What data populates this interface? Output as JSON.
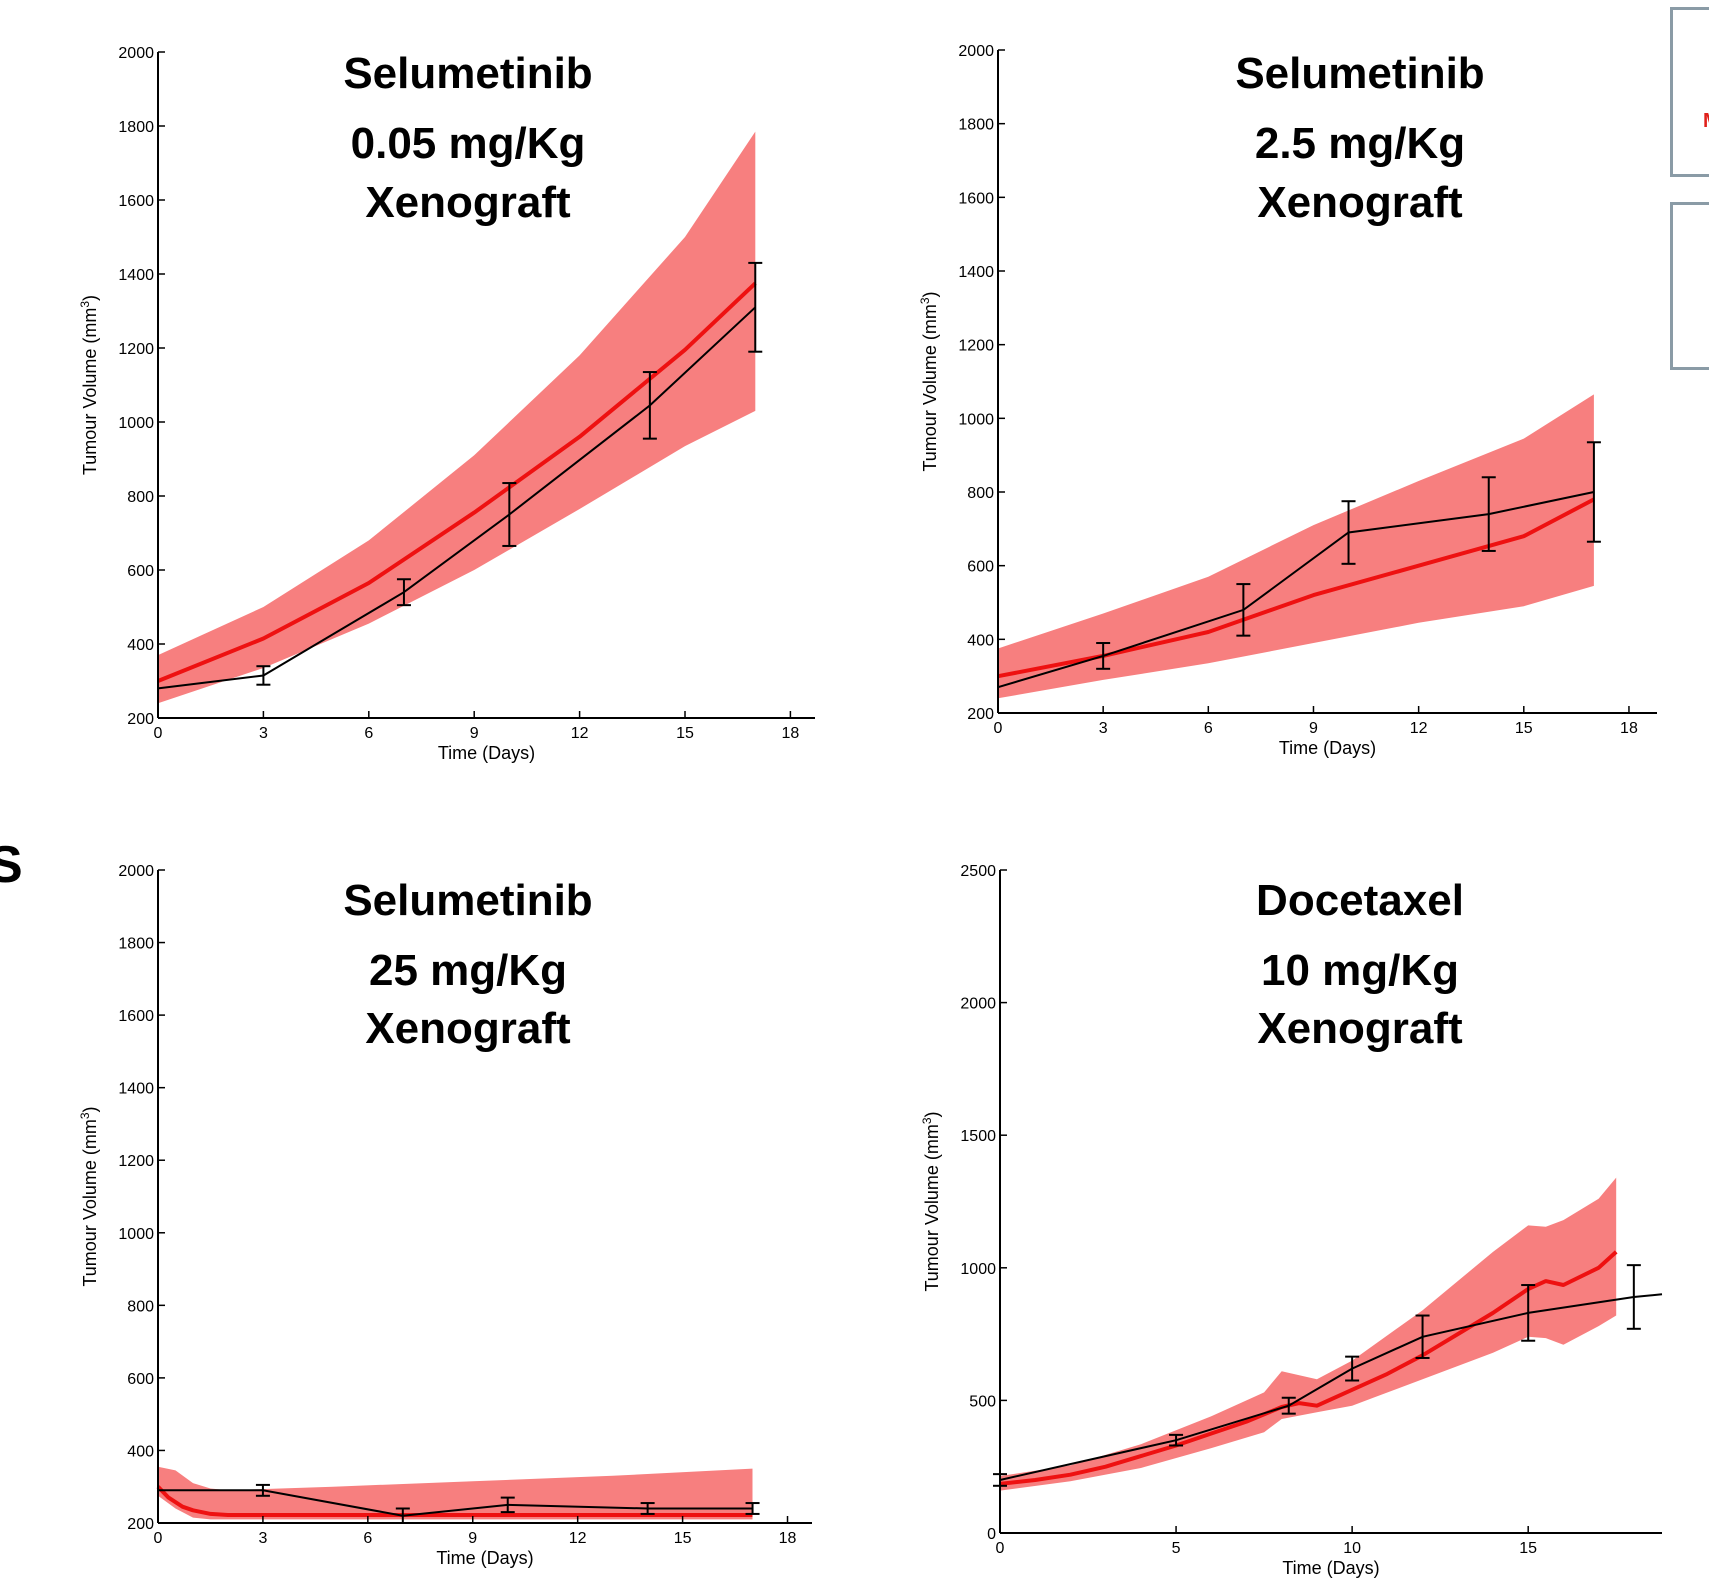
{
  "side_label": "S",
  "right_frames": [
    {
      "text": "M",
      "color": "#e0201b"
    },
    {
      "text": "",
      "color": "#000000"
    }
  ],
  "colors": {
    "model": "#ee1111",
    "band": "#f77f7f",
    "observed": "#000000"
  },
  "chart_data": [
    {
      "type": "line",
      "title_lines": [
        "Selumetinib",
        "0.05 mg/Kg",
        "Xenograft"
      ],
      "xlabel": "Time (Days)",
      "ylabel": "Tumour Volume (mm",
      "ylabel_sup": "3",
      "ylabel_close": ")",
      "xlim": [
        0,
        18.7
      ],
      "ylim": [
        200,
        2000
      ],
      "xticks": [
        0,
        3,
        6,
        9,
        12,
        15,
        18
      ],
      "yticks": [
        200,
        400,
        600,
        800,
        1000,
        1200,
        1400,
        1600,
        1800,
        2000
      ],
      "model": {
        "x": [
          0,
          3,
          6,
          9,
          12,
          15,
          17
        ],
        "y": [
          300,
          415,
          565,
          755,
          960,
          1195,
          1375
        ]
      },
      "band": {
        "x": [
          0,
          3,
          6,
          9,
          12,
          15,
          17
        ],
        "upper": [
          370,
          500,
          680,
          910,
          1180,
          1500,
          1785
        ],
        "lower": [
          240,
          335,
          455,
          600,
          765,
          935,
          1030
        ]
      },
      "observed": {
        "x": [
          0,
          3,
          7,
          10,
          14,
          17
        ],
        "y": [
          280,
          315,
          540,
          750,
          1045,
          1310
        ],
        "err": [
          0,
          25,
          35,
          85,
          90,
          120
        ]
      }
    },
    {
      "type": "line",
      "title_lines": [
        "Selumetinib",
        "2.5 mg/Kg",
        "Xenograft"
      ],
      "xlabel": "Time (Days)",
      "ylabel": "Tumour Volume (mm",
      "ylabel_sup": "3",
      "ylabel_close": ")",
      "xlim": [
        0,
        18.8
      ],
      "ylim": [
        200,
        2000
      ],
      "xticks": [
        0,
        3,
        6,
        9,
        12,
        15,
        18
      ],
      "yticks": [
        200,
        400,
        600,
        800,
        1000,
        1200,
        1400,
        1600,
        1800,
        2000
      ],
      "model": {
        "x": [
          0,
          3,
          6,
          9,
          12,
          15,
          17
        ],
        "y": [
          300,
          355,
          420,
          520,
          600,
          680,
          780
        ]
      },
      "band": {
        "x": [
          0,
          3,
          6,
          9,
          12,
          15,
          17
        ],
        "upper": [
          375,
          470,
          570,
          710,
          830,
          945,
          1065
        ],
        "lower": [
          240,
          290,
          335,
          390,
          445,
          490,
          545
        ]
      },
      "observed": {
        "x": [
          0,
          3,
          7,
          10,
          14,
          17
        ],
        "y": [
          270,
          355,
          480,
          690,
          740,
          800
        ],
        "err": [
          0,
          35,
          70,
          85,
          100,
          135
        ]
      }
    },
    {
      "type": "line",
      "title_lines": [
        "Selumetinib",
        "25 mg/Kg",
        "Xenograft"
      ],
      "xlabel": "Time (Days)",
      "ylabel": "Tumour Volume (mm",
      "ylabel_sup": "3",
      "ylabel_close": ")",
      "xlim": [
        0,
        18.7
      ],
      "ylim": [
        200,
        2000
      ],
      "xticks": [
        0,
        3,
        6,
        9,
        12,
        15,
        18
      ],
      "yticks": [
        200,
        400,
        600,
        800,
        1000,
        1200,
        1400,
        1600,
        1800,
        2000
      ],
      "model": {
        "x": [
          0,
          0.3,
          0.7,
          1.0,
          1.5,
          2.0,
          3,
          6,
          9,
          12,
          15,
          17
        ],
        "y": [
          300,
          270,
          245,
          235,
          225,
          222,
          222,
          222,
          222,
          222,
          222,
          222
        ]
      },
      "band": {
        "x": [
          0,
          0.5,
          1.0,
          1.5,
          2,
          5,
          9,
          13,
          17
        ],
        "upper": [
          355,
          345,
          310,
          295,
          290,
          300,
          315,
          330,
          350
        ],
        "lower": [
          275,
          240,
          215,
          210,
          210,
          210,
          210,
          210,
          210
        ]
      },
      "observed": {
        "x": [
          0,
          3,
          7,
          10,
          14,
          17
        ],
        "y": [
          290,
          290,
          220,
          250,
          240,
          240
        ],
        "err": [
          0,
          15,
          20,
          20,
          15,
          15
        ]
      }
    },
    {
      "type": "line",
      "title_lines": [
        "Docetaxel",
        "10 mg/Kg",
        "Xenograft"
      ],
      "xlabel": "Time (Days)",
      "ylabel": "Tumour Volume (mm",
      "ylabel_sup": "3",
      "ylabel_close": ")",
      "xlim": [
        0,
        18.8
      ],
      "ylim": [
        0,
        2500
      ],
      "xticks": [
        0,
        5,
        10,
        15
      ],
      "yticks": [
        0,
        500,
        1000,
        1500,
        2000,
        2500
      ],
      "model": {
        "x": [
          0,
          1,
          2,
          3,
          4,
          5,
          6,
          7,
          8,
          8.5,
          9,
          10,
          11,
          12,
          13,
          14,
          15,
          15.5,
          16,
          17,
          17.5
        ],
        "y": [
          185,
          200,
          220,
          250,
          290,
          330,
          375,
          420,
          475,
          490,
          480,
          540,
          600,
          670,
          750,
          830,
          920,
          950,
          935,
          1000,
          1060
        ]
      },
      "band": {
        "x": [
          0,
          2,
          4,
          6,
          7.5,
          8,
          9,
          10,
          12,
          14,
          15,
          15.5,
          16,
          17,
          17.5
        ],
        "upper": [
          215,
          255,
          335,
          440,
          530,
          610,
          580,
          650,
          840,
          1060,
          1160,
          1155,
          1180,
          1260,
          1340
        ],
        "lower": [
          160,
          195,
          245,
          320,
          380,
          430,
          455,
          480,
          580,
          680,
          740,
          735,
          710,
          780,
          820
        ]
      },
      "observed": {
        "x": [
          0,
          5,
          8.2,
          10,
          12,
          15,
          18,
          18.8
        ],
        "y": [
          200,
          350,
          480,
          620,
          740,
          830,
          890,
          900
        ],
        "err": [
          22,
          20,
          30,
          45,
          80,
          105,
          120,
          0
        ]
      }
    }
  ]
}
